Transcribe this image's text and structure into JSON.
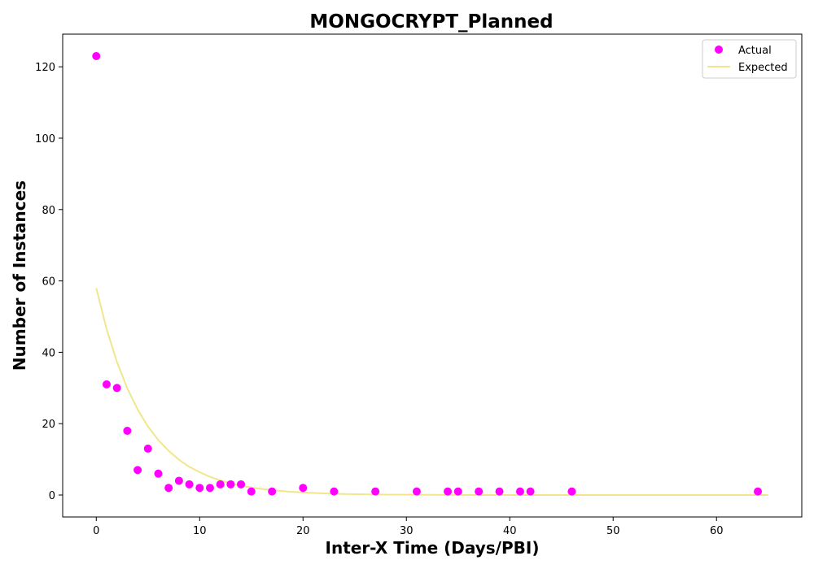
{
  "chart_data": {
    "type": "scatter",
    "title": "MONGOCRYPT_Planned",
    "xlabel": "Inter-X Time (Days/PBI)",
    "ylabel": "Number of Instances",
    "xlim": [
      -3.25,
      68.25
    ],
    "ylim": [
      -6.15,
      129.15
    ],
    "xticks": [
      0,
      10,
      20,
      30,
      40,
      50,
      60
    ],
    "yticks": [
      0,
      20,
      40,
      60,
      80,
      100,
      120
    ],
    "grid": false,
    "legend_position": "top-right",
    "series": [
      {
        "name": "Actual",
        "kind": "scatter",
        "color": "#ff00ff",
        "x": [
          0,
          1,
          2,
          3,
          4,
          5,
          6,
          7,
          8,
          9,
          10,
          11,
          12,
          13,
          14,
          15,
          17,
          20,
          23,
          27,
          31,
          34,
          35,
          37,
          39,
          41,
          42,
          46,
          64
        ],
        "y": [
          123,
          31,
          30,
          18,
          7,
          13,
          6,
          2,
          4,
          3,
          2,
          2,
          3,
          3,
          3,
          1,
          1,
          2,
          1,
          1,
          1,
          1,
          1,
          1,
          1,
          1,
          1,
          1,
          1
        ]
      },
      {
        "name": "Expected",
        "kind": "line",
        "color": "#f0e68c",
        "x": [
          0,
          1,
          2,
          3,
          4,
          5,
          6,
          7,
          8,
          9,
          10,
          11,
          12,
          13,
          14,
          15,
          16,
          17,
          18,
          19,
          20,
          22,
          24,
          26,
          28,
          30,
          35,
          40,
          45,
          50,
          55,
          60,
          65
        ],
        "y": [
          58,
          46.5,
          37.3,
          29.9,
          24.0,
          19.2,
          15.4,
          12.4,
          9.9,
          7.9,
          6.4,
          5.1,
          4.1,
          3.3,
          2.6,
          2.1,
          1.7,
          1.4,
          1.1,
          0.87,
          0.7,
          0.45,
          0.29,
          0.19,
          0.12,
          0.08,
          0.03,
          0.01,
          0,
          0,
          0,
          0,
          0
        ]
      }
    ]
  }
}
